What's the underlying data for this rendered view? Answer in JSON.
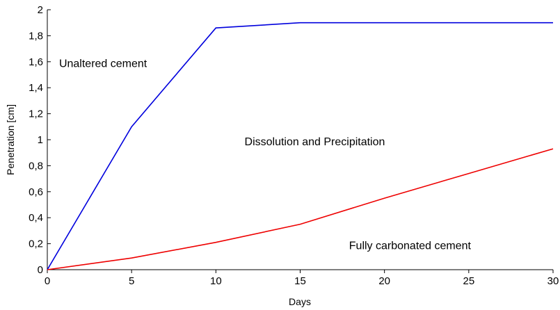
{
  "chart_data": {
    "type": "line",
    "xlabel": "Days",
    "ylabel": "Penetration [cm]",
    "xlim": [
      0,
      30
    ],
    "ylim": [
      0,
      2
    ],
    "x_ticks": [
      0,
      5,
      10,
      15,
      20,
      25,
      30
    ],
    "x_tick_labels": [
      "0",
      "5",
      "10",
      "15",
      "20",
      "25",
      "30"
    ],
    "y_ticks": [
      0,
      0.2,
      0.4,
      0.6,
      0.8,
      1,
      1.2,
      1.4,
      1.6,
      1.8,
      2
    ],
    "y_tick_labels": [
      "0",
      "0,2",
      "0,4",
      "0,6",
      "0,8",
      "1",
      "1,2",
      "1,4",
      "1,6",
      "1,8",
      "2"
    ],
    "grid": false,
    "series": [
      {
        "color": "#0000dd",
        "x": [
          0,
          5,
          10,
          15,
          20,
          25,
          30
        ],
        "y": [
          0,
          1.1,
          1.86,
          1.9,
          1.9,
          1.9,
          1.9
        ]
      },
      {
        "color": "#ee0000",
        "x": [
          0,
          5,
          10,
          15,
          20,
          25,
          30
        ],
        "y": [
          0,
          0.09,
          0.21,
          0.35,
          0.55,
          0.74,
          0.93
        ]
      }
    ],
    "annotations": [
      {
        "text": "Unaltered cement",
        "x": 0.7,
        "y": 1.59
      },
      {
        "text": "Dissolution and Precipitation",
        "x": 11.7,
        "y": 0.99
      },
      {
        "text": "Fully carbonated cement",
        "x": 17.9,
        "y": 0.19
      }
    ]
  }
}
